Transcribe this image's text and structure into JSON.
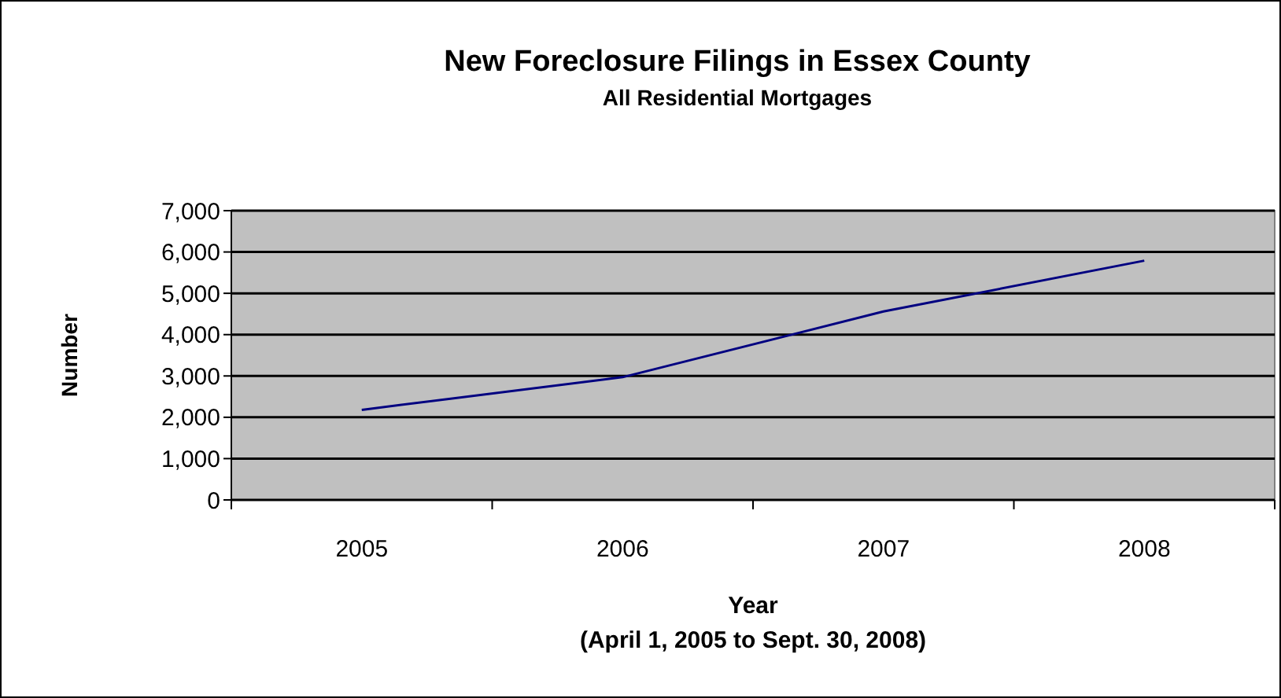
{
  "chart_data": {
    "type": "line",
    "title": "New Foreclosure Filings in Essex County",
    "subtitle": "All Residential Mortgages",
    "xlabel": "Year",
    "annotations": [
      "(April 1, 2005 to Sept. 30, 2008)"
    ],
    "ylabel": "Number",
    "categories": [
      "2005",
      "2006",
      "2007",
      "2008"
    ],
    "series": [
      {
        "color": "#000080",
        "values": [
          2180,
          2970,
          4560,
          5790
        ]
      }
    ],
    "ylim": [
      0,
      7000
    ],
    "yticks": [
      {
        "value": 0,
        "label": "0"
      },
      {
        "value": 1000,
        "label": "1,000"
      },
      {
        "value": 2000,
        "label": "2,000"
      },
      {
        "value": 3000,
        "label": "3,000"
      },
      {
        "value": 4000,
        "label": "4,000"
      },
      {
        "value": 5000,
        "label": "5,000"
      },
      {
        "value": 6000,
        "label": "6,000"
      },
      {
        "value": 7000,
        "label": "7,000"
      }
    ],
    "grid": "y",
    "marker": "none",
    "line_style": "solid"
  }
}
